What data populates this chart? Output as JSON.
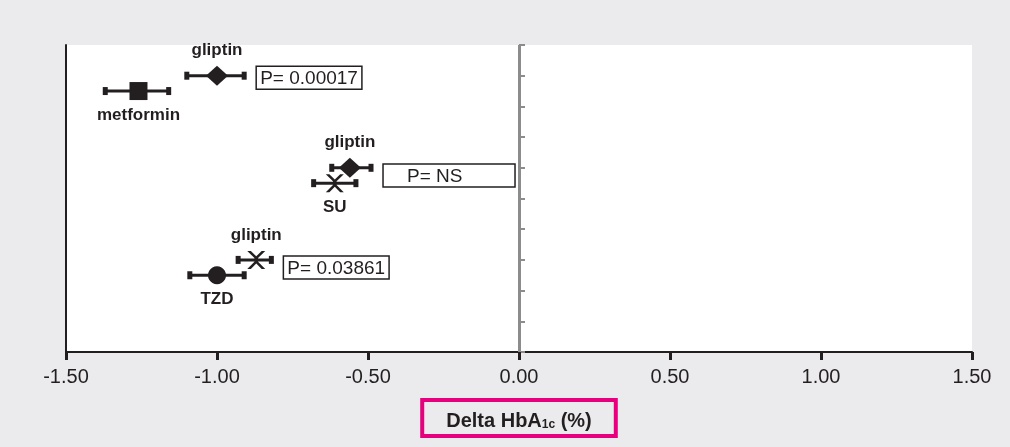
{
  "chart_data": {
    "type": "scatter",
    "orientation": "horizontal",
    "xlabel": "Delta HbA$_{1c}$ (%)",
    "legend": false,
    "grid": false,
    "categories": [
      null,
      null,
      null,
      null,
      null,
      null,
      null,
      null,
      null,
      null,
      null,
      null,
      null,
      null,
      null,
      null,
      null,
      null,
      null,
      null,
      null
    ],
    "xlim": [
      -1.5,
      1.5
    ],
    "xticks": [
      {
        "value": -1.5,
        "label": "-1.50"
      },
      {
        "value": -1,
        "label": "-1.00"
      },
      {
        "value": -0.5,
        "label": "-0.50"
      },
      {
        "value": 0,
        "label": "0.00"
      },
      {
        "value": 0.5,
        "label": "0.50"
      },
      {
        "value": 1,
        "label": "1.00"
      },
      {
        "value": 1.5,
        "label": "1.50"
      }
    ],
    "series": [
      {
        "name": "gliptin",
        "color": "#231f20",
        "marker": "diamond",
        "values": [
          null,
          null,
          -1.0,
          null,
          null,
          null,
          null,
          null,
          null,
          null,
          null,
          null,
          null,
          null,
          null,
          null,
          null,
          null,
          null,
          null,
          null
        ],
        "errors": [
          null,
          null,
          [
            -1.1,
            -0.91
          ],
          null,
          null,
          null,
          null,
          null,
          null,
          null,
          null,
          null,
          null,
          null,
          null,
          null,
          null,
          null,
          null,
          null,
          null
        ]
      },
      {
        "name": "metformin",
        "color": "#231f20",
        "marker": "square",
        "values": [
          null,
          null,
          null,
          -1.26,
          null,
          null,
          null,
          null,
          null,
          null,
          null,
          null,
          null,
          null,
          null,
          null,
          null,
          null,
          null,
          null,
          null
        ],
        "errors": [
          null,
          null,
          null,
          [
            -1.37,
            -1.16
          ],
          null,
          null,
          null,
          null,
          null,
          null,
          null,
          null,
          null,
          null,
          null,
          null,
          null,
          null,
          null,
          null,
          null
        ]
      },
      {
        "name": "gliptin",
        "color": "#231f20",
        "marker": "diamond",
        "values": [
          null,
          null,
          null,
          null,
          null,
          null,
          null,
          null,
          -0.56,
          null,
          null,
          null,
          null,
          null,
          null,
          null,
          null,
          null,
          null,
          null,
          null
        ],
        "errors": [
          null,
          null,
          null,
          null,
          null,
          null,
          null,
          null,
          [
            -0.62,
            -0.49
          ],
          null,
          null,
          null,
          null,
          null,
          null,
          null,
          null,
          null,
          null,
          null,
          null
        ]
      },
      {
        "name": "SU",
        "color": "#231f20",
        "marker": "cross",
        "values": [
          null,
          null,
          null,
          null,
          null,
          null,
          null,
          null,
          null,
          -0.61,
          null,
          null,
          null,
          null,
          null,
          null,
          null,
          null,
          null,
          null,
          null
        ],
        "errors": [
          null,
          null,
          null,
          null,
          null,
          null,
          null,
          null,
          null,
          [
            -0.68,
            -0.54
          ],
          null,
          null,
          null,
          null,
          null,
          null,
          null,
          null,
          null,
          null,
          null
        ]
      },
      {
        "name": "gliptin",
        "color": "#231f20",
        "marker": "cross",
        "values": [
          null,
          null,
          null,
          null,
          null,
          null,
          null,
          null,
          null,
          null,
          null,
          null,
          null,
          null,
          -0.87,
          null,
          null,
          null,
          null,
          null,
          null
        ],
        "errors": [
          null,
          null,
          null,
          null,
          null,
          null,
          null,
          null,
          null,
          null,
          null,
          null,
          null,
          null,
          [
            -0.93,
            -0.82
          ],
          null,
          null,
          null,
          null,
          null,
          null
        ]
      },
      {
        "name": "TZD",
        "color": "#231f20",
        "marker": "circle",
        "values": [
          null,
          null,
          null,
          null,
          null,
          null,
          null,
          null,
          null,
          null,
          null,
          null,
          null,
          null,
          null,
          -1.0,
          null,
          null,
          null,
          null,
          null
        ],
        "errors": [
          null,
          null,
          null,
          null,
          null,
          null,
          null,
          null,
          null,
          null,
          null,
          null,
          null,
          null,
          null,
          [
            -1.09,
            -0.91
          ],
          null,
          null,
          null,
          null,
          null
        ]
      }
    ],
    "ref_lines": [
      {
        "axis": "x",
        "value": 0,
        "color": "#8c8c8c"
      }
    ],
    "annotations": [
      "P= 0.00017",
      "P= NS",
      "P= 0.03861"
    ]
  }
}
